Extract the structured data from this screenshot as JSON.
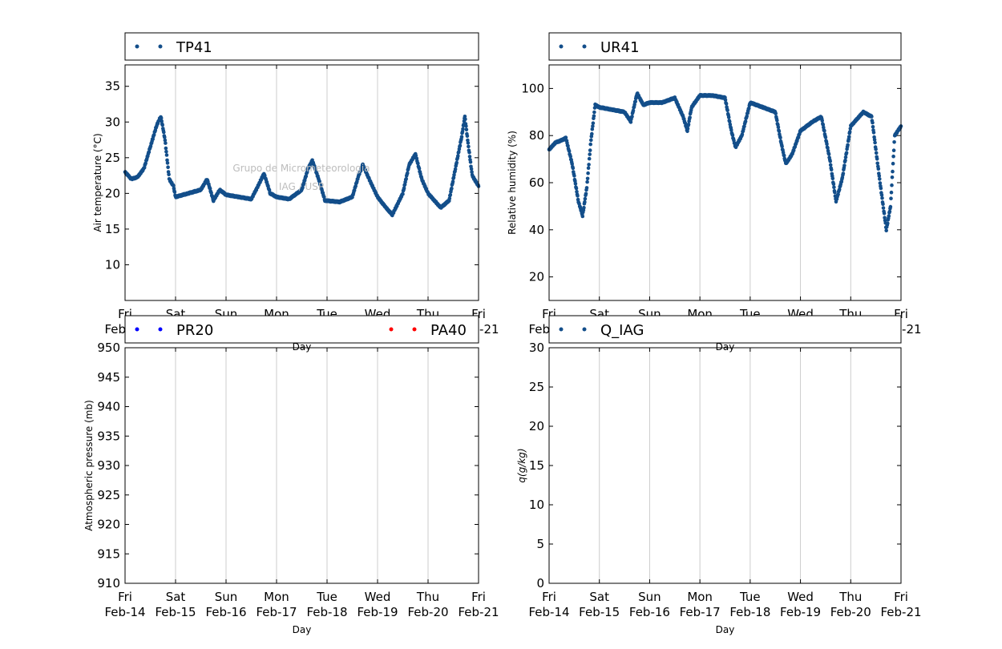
{
  "colors": {
    "series_navy": "#134e8a",
    "series_blue": "#0000ff",
    "series_red": "#ff0000",
    "grid": "#cccccc"
  },
  "watermark": {
    "line1": "Grupo de Micrometeorologia",
    "line2": "IAG / USP"
  },
  "x_ticks": [
    {
      "day": "Fri",
      "date": "Feb-14"
    },
    {
      "day": "Sat",
      "date": "Feb-15"
    },
    {
      "day": "Sun",
      "date": "Feb-16"
    },
    {
      "day": "Mon",
      "date": "Feb-17"
    },
    {
      "day": "Tue",
      "date": "Feb-18"
    },
    {
      "day": "Wed",
      "date": "Feb-19"
    },
    {
      "day": "Thu",
      "date": "Feb-20"
    },
    {
      "day": "Fri",
      "date": "Feb-21"
    }
  ],
  "chart_data": [
    {
      "type": "scatter",
      "title": "",
      "xlabel": "Day",
      "ylabel": "Air temperature (°C)",
      "xlim": [
        "Feb-14",
        "Feb-21"
      ],
      "ylim": [
        5,
        38
      ],
      "yticks": [
        10,
        15,
        20,
        25,
        30,
        35
      ],
      "grid": "vertical",
      "legend": [
        "TP41"
      ],
      "series": [
        {
          "name": "TP41",
          "color": "#134e8a",
          "points": [
            [
              "Feb-14 00:00",
              23.0
            ],
            [
              "Feb-14 03:00",
              22.0
            ],
            [
              "Feb-14 06:00",
              22.3
            ],
            [
              "Feb-14 09:00",
              23.5
            ],
            [
              "Feb-14 12:00",
              26.5
            ],
            [
              "Feb-14 15:00",
              29.5
            ],
            [
              "Feb-14 17:00",
              30.8
            ],
            [
              "Feb-14 19:00",
              27.5
            ],
            [
              "Feb-14 21:00",
              22.0
            ],
            [
              "Feb-14 23:00",
              21.0
            ],
            [
              "Feb-15 00:00",
              19.5
            ],
            [
              "Feb-15 06:00",
              20.0
            ],
            [
              "Feb-15 12:00",
              20.5
            ],
            [
              "Feb-15 15:00",
              22.0
            ],
            [
              "Feb-15 18:00",
              19.0
            ],
            [
              "Feb-15 21:00",
              20.5
            ],
            [
              "Feb-16 00:00",
              19.8
            ],
            [
              "Feb-16 06:00",
              19.5
            ],
            [
              "Feb-16 12:00",
              19.2
            ],
            [
              "Feb-16 16:00",
              21.5
            ],
            [
              "Feb-16 18:00",
              22.8
            ],
            [
              "Feb-16 21:00",
              20.0
            ],
            [
              "Feb-17 00:00",
              19.5
            ],
            [
              "Feb-17 06:00",
              19.2
            ],
            [
              "Feb-17 12:00",
              20.5
            ],
            [
              "Feb-17 15:00",
              23.5
            ],
            [
              "Feb-17 17:00",
              24.6
            ],
            [
              "Feb-17 20:00",
              22.0
            ],
            [
              "Feb-17 23:00",
              19.0
            ],
            [
              "Feb-18 06:00",
              18.8
            ],
            [
              "Feb-18 12:00",
              19.5
            ],
            [
              "Feb-18 15:00",
              22.5
            ],
            [
              "Feb-18 17:00",
              24.0
            ],
            [
              "Feb-18 20:00",
              22.0
            ],
            [
              "Feb-19 00:00",
              19.5
            ],
            [
              "Feb-19 04:00",
              18.0
            ],
            [
              "Feb-19 07:00",
              17.0
            ],
            [
              "Feb-19 12:00",
              20.0
            ],
            [
              "Feb-19 15:00",
              24.0
            ],
            [
              "Feb-19 18:00",
              25.5
            ],
            [
              "Feb-19 21:00",
              22.0
            ],
            [
              "Feb-20 00:00",
              20.0
            ],
            [
              "Feb-20 06:00",
              18.0
            ],
            [
              "Feb-20 10:00",
              19.0
            ],
            [
              "Feb-20 13:00",
              23.5
            ],
            [
              "Feb-20 16:00",
              28.0
            ],
            [
              "Feb-20 17:30",
              30.8
            ],
            [
              "Feb-20 19:00",
              27.0
            ],
            [
              "Feb-20 21:00",
              22.5
            ],
            [
              "Feb-21 00:00",
              21.0
            ]
          ]
        }
      ]
    },
    {
      "type": "scatter",
      "title": "",
      "xlabel": "Day",
      "ylabel": "Relative humidity (%)",
      "xlim": [
        "Feb-14",
        "Feb-21"
      ],
      "ylim": [
        10,
        110
      ],
      "yticks": [
        20,
        40,
        60,
        80,
        100
      ],
      "grid": "vertical",
      "legend": [
        "UR41"
      ],
      "series": [
        {
          "name": "UR41",
          "color": "#134e8a",
          "points": [
            [
              "Feb-14 00:00",
              74
            ],
            [
              "Feb-14 03:00",
              77
            ],
            [
              "Feb-14 06:00",
              78
            ],
            [
              "Feb-14 08:00",
              79
            ],
            [
              "Feb-14 11:00",
              68
            ],
            [
              "Feb-14 14:00",
              52
            ],
            [
              "Feb-14 16:00",
              46
            ],
            [
              "Feb-14 18:00",
              58
            ],
            [
              "Feb-14 20:00",
              78
            ],
            [
              "Feb-14 22:00",
              93
            ],
            [
              "Feb-15 00:00",
              92
            ],
            [
              "Feb-15 06:00",
              91
            ],
            [
              "Feb-15 12:00",
              90
            ],
            [
              "Feb-15 15:00",
              86
            ],
            [
              "Feb-15 18:00",
              98
            ],
            [
              "Feb-15 21:00",
              93
            ],
            [
              "Feb-16 00:00",
              94
            ],
            [
              "Feb-16 06:00",
              94
            ],
            [
              "Feb-16 12:00",
              96
            ],
            [
              "Feb-16 16:00",
              88
            ],
            [
              "Feb-16 18:00",
              82
            ],
            [
              "Feb-16 20:00",
              92
            ],
            [
              "Feb-17 00:00",
              97
            ],
            [
              "Feb-17 06:00",
              97
            ],
            [
              "Feb-17 12:00",
              96
            ],
            [
              "Feb-17 15:00",
              82
            ],
            [
              "Feb-17 17:00",
              75
            ],
            [
              "Feb-17 20:00",
              80
            ],
            [
              "Feb-18 00:00",
              94
            ],
            [
              "Feb-18 06:00",
              92
            ],
            [
              "Feb-18 12:00",
              90
            ],
            [
              "Feb-18 15:00",
              76
            ],
            [
              "Feb-18 17:00",
              68
            ],
            [
              "Feb-18 20:00",
              72
            ],
            [
              "Feb-19 00:00",
              82
            ],
            [
              "Feb-19 06:00",
              86
            ],
            [
              "Feb-19 10:00",
              88
            ],
            [
              "Feb-19 14:00",
              70
            ],
            [
              "Feb-19 17:00",
              52
            ],
            [
              "Feb-19 20:00",
              62
            ],
            [
              "Feb-20 00:00",
              84
            ],
            [
              "Feb-20 06:00",
              90
            ],
            [
              "Feb-20 10:00",
              88
            ],
            [
              "Feb-20 14:00",
              60
            ],
            [
              "Feb-20 17:00",
              40
            ],
            [
              "Feb-20 19:00",
              50
            ],
            [
              "Feb-20 21:00",
              80
            ],
            [
              "Feb-21 00:00",
              84
            ]
          ]
        }
      ]
    },
    {
      "type": "scatter",
      "title": "",
      "xlabel": "Day",
      "ylabel": "Atmospheric pressure (mb)",
      "xlim": [
        "Feb-14",
        "Feb-21"
      ],
      "ylim": [
        910,
        950
      ],
      "yticks": [
        910,
        915,
        920,
        925,
        930,
        935,
        940,
        945,
        950
      ],
      "grid": "vertical",
      "legend": [
        "PR20",
        "PA40"
      ],
      "series": [
        {
          "name": "PR20",
          "color": "#0000ff",
          "points": []
        },
        {
          "name": "PA40",
          "color": "#ff0000",
          "points": []
        }
      ]
    },
    {
      "type": "scatter",
      "title": "",
      "xlabel": "Day",
      "ylabel": "q(g/kg)",
      "xlim": [
        "Feb-14",
        "Feb-21"
      ],
      "ylim": [
        0,
        30
      ],
      "yticks": [
        0,
        5,
        10,
        15,
        20,
        25,
        30
      ],
      "grid": "vertical",
      "legend": [
        "Q_IAG"
      ],
      "series": [
        {
          "name": "Q_IAG",
          "color": "#134e8a",
          "points": []
        }
      ]
    }
  ]
}
